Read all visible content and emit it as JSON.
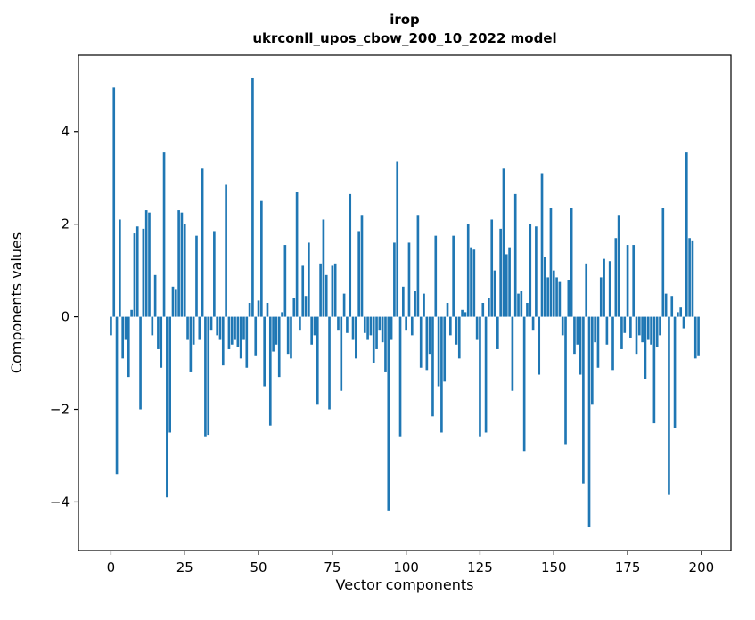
{
  "chart_data": {
    "type": "bar",
    "title_line1": "irop",
    "title_line2": "ukrconll_upos_cbow_200_10_2022 model",
    "xlabel": "Vector components",
    "ylabel": "Components values",
    "x_ticks": [
      0,
      25,
      50,
      75,
      100,
      125,
      150,
      175,
      200
    ],
    "y_ticks": [
      -4,
      -2,
      0,
      2,
      4
    ],
    "xlim": [
      -11,
      210
    ],
    "ylim": [
      -5.05,
      5.65
    ],
    "bar_color": "#1f77b4",
    "bar_width": 0.8,
    "legend": "none",
    "grid": false,
    "values": [
      -0.4,
      4.95,
      -3.4,
      2.1,
      -0.9,
      -0.5,
      -1.3,
      0.15,
      1.8,
      1.95,
      -2.0,
      1.9,
      2.3,
      2.25,
      -0.4,
      0.9,
      -0.7,
      -1.1,
      3.55,
      -3.9,
      -2.5,
      0.65,
      0.6,
      2.3,
      2.25,
      2.0,
      -0.5,
      -1.2,
      -0.6,
      1.75,
      -0.5,
      3.2,
      -2.6,
      -2.55,
      -0.3,
      1.85,
      -0.4,
      -0.5,
      -1.05,
      2.85,
      -0.7,
      -0.6,
      -0.5,
      -0.65,
      -0.9,
      -0.5,
      -1.1,
      0.3,
      5.15,
      -0.85,
      0.35,
      2.5,
      -1.5,
      0.3,
      -2.35,
      -0.75,
      -0.6,
      -1.3,
      0.1,
      1.55,
      -0.8,
      -0.9,
      0.4,
      2.7,
      -0.3,
      1.1,
      0.45,
      1.6,
      -0.6,
      -0.4,
      -1.9,
      1.15,
      2.1,
      0.9,
      -2.0,
      1.1,
      1.15,
      -0.3,
      -1.6,
      0.5,
      -0.35,
      2.65,
      -0.5,
      -0.9,
      1.85,
      2.2,
      -0.35,
      -0.5,
      -0.4,
      -1.0,
      -0.7,
      -0.3,
      -0.55,
      -1.2,
      -4.2,
      -0.5,
      1.6,
      3.35,
      -2.6,
      0.65,
      -0.3,
      1.6,
      -0.4,
      0.55,
      2.2,
      -1.1,
      0.5,
      -1.15,
      -0.8,
      -2.15,
      1.75,
      -1.5,
      -2.5,
      -1.4,
      0.3,
      -0.4,
      1.75,
      -0.6,
      -0.9,
      0.15,
      0.1,
      2.0,
      1.5,
      1.45,
      -0.5,
      -2.6,
      0.3,
      -2.5,
      0.4,
      2.1,
      1.0,
      -0.7,
      1.9,
      3.2,
      1.35,
      1.5,
      -1.6,
      2.65,
      0.5,
      0.55,
      -2.9,
      0.3,
      2.0,
      -0.3,
      1.95,
      -1.25,
      3.1,
      1.3,
      0.85,
      2.35,
      1.0,
      0.85,
      0.75,
      -0.4,
      -2.75,
      0.8,
      2.35,
      -0.8,
      -0.6,
      -1.25,
      -3.6,
      1.15,
      -4.55,
      -1.9,
      -0.55,
      -1.1,
      0.85,
      1.25,
      -0.6,
      1.2,
      -1.15,
      1.7,
      2.2,
      -0.7,
      -0.35,
      1.55,
      -0.45,
      1.55,
      -0.8,
      -0.4,
      -0.55,
      -1.35,
      -0.5,
      -0.6,
      -2.3,
      -0.65,
      -0.4,
      2.35,
      0.5,
      -3.85,
      0.45,
      -2.4,
      0.1,
      0.2,
      -0.25,
      3.55,
      1.7,
      1.65,
      -0.9,
      -0.85
    ]
  }
}
